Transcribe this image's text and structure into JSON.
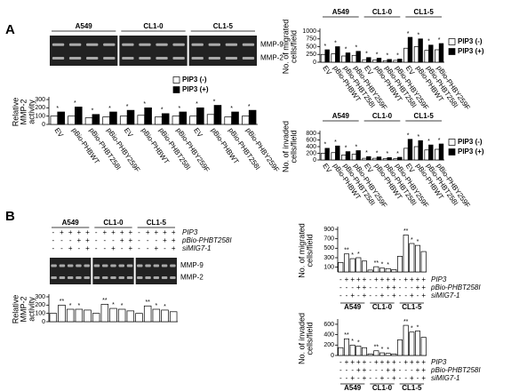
{
  "panels": [
    "A",
    "B"
  ],
  "chart_data": [
    {
      "type": "bar",
      "ylabel": [
        "Relative",
        "MMP-2",
        "activity"
      ],
      "groups": [
        "A549",
        "CL1-0",
        "CL1-5"
      ],
      "gel_labels": [
        "MMP-9",
        "MMP-2"
      ],
      "legend": true,
      "categories": [
        "EV",
        "pBio-PHBWT",
        "pBio-PHBT258I",
        "pBio-PHBY259F",
        "EV",
        "pBio-PHBWT",
        "pBio-PHBT258I",
        "pBio-PHBY259F",
        "EV",
        "pBio-PHBWT",
        "pBio-PHBT258I",
        "pBio-PHBY259F"
      ],
      "series": [
        {
          "name": "PIP3 (-)",
          "color": "#ffffff",
          "values": [
            100,
            100,
            80,
            90,
            100,
            110,
            90,
            100,
            100,
            120,
            90,
            100
          ]
        },
        {
          "name": "PIP3 (+)",
          "color": "#000000",
          "values": [
            150,
            210,
            120,
            150,
            170,
            200,
            130,
            150,
            200,
            230,
            150,
            170
          ]
        }
      ],
      "significance": [
        "*",
        "*",
        "*",
        "*",
        "*",
        "*",
        "*",
        "*",
        "*",
        "*",
        "*",
        "*"
      ],
      "ylim": [
        0,
        300
      ],
      "yticks": [
        0,
        100,
        200,
        300
      ]
    },
    {
      "type": "bar",
      "ylabel": [
        "No. of migrated",
        "cells/field"
      ],
      "groups": [
        "A549",
        "CL1-0",
        "CL1-5"
      ],
      "legend": true,
      "categories": [
        "EV",
        "pBio-PHBWT",
        "pBio-PHBT258I",
        "pBio-PHBY259F",
        "EV",
        "pBio-PHBWT",
        "pBio-PHBT258I",
        "pBio-PHBY259F",
        "EV",
        "pBio-PHBWT",
        "pBio-PHBT258I",
        "pBio-PHBY259F"
      ],
      "series": [
        {
          "name": "PIP3 (-)",
          "color": "#ffffff",
          "values": [
            250,
            270,
            200,
            220,
            80,
            70,
            50,
            60,
            450,
            500,
            380,
            400
          ]
        },
        {
          "name": "PIP3 (+)",
          "color": "#000000",
          "values": [
            400,
            500,
            300,
            350,
            150,
            130,
            90,
            100,
            800,
            750,
            550,
            600
          ]
        }
      ],
      "significance": [
        "*",
        "*",
        "*",
        "*",
        "*",
        "*",
        "*",
        "*",
        "*",
        "*",
        "*",
        "*"
      ],
      "ylim": [
        0,
        1000
      ],
      "yticks": [
        0,
        250,
        500,
        750,
        1000
      ]
    },
    {
      "type": "bar",
      "ylabel": [
        "No. of invaded",
        "cells/field"
      ],
      "groups": [
        "A549",
        "CL1-0",
        "CL1-5"
      ],
      "legend": true,
      "categories": [
        "EV",
        "pBio-PHBWT",
        "pBio-PHBT258I",
        "pBio-PHBY259F",
        "EV",
        "pBio-PHBWT",
        "pBio-PHBT258I",
        "pBio-PHBY259F",
        "EV",
        "pBio-PHBWT",
        "pBio-PHBT258I",
        "pBio-PHBY259F"
      ],
      "series": [
        {
          "name": "PIP3 (-)",
          "color": "#ffffff",
          "values": [
            200,
            220,
            150,
            170,
            50,
            50,
            40,
            40,
            350,
            400,
            300,
            320
          ]
        },
        {
          "name": "PIP3 (+)",
          "color": "#000000",
          "values": [
            350,
            420,
            250,
            280,
            100,
            90,
            70,
            80,
            620,
            580,
            450,
            480
          ]
        }
      ],
      "significance": [
        "*",
        "*",
        "*",
        "*",
        "*",
        "*",
        "*",
        "*",
        "*",
        "*",
        "*",
        "*"
      ],
      "ylim": [
        0,
        800
      ],
      "yticks": [
        0,
        200,
        400,
        600,
        800
      ]
    },
    {
      "type": "bar",
      "ylabel": [
        "Relative",
        "MMP-2",
        "activity"
      ],
      "groups": [
        "A549",
        "CL1-0",
        "CL1-5"
      ],
      "gel_labels": [
        "MMP-9",
        "MMP-2"
      ],
      "conditions": [
        {
          "name": "PIP3",
          "signs": [
            "-",
            "+",
            "+",
            "+",
            "+",
            "-",
            "+",
            "+",
            "+",
            "+",
            "-",
            "+",
            "+",
            "+",
            "+"
          ]
        },
        {
          "name": "pBio-PHBT258I",
          "signs": [
            "-",
            "-",
            "-",
            "+",
            "+",
            "-",
            "-",
            "-",
            "+",
            "+",
            "-",
            "-",
            "-",
            "+",
            "+"
          ]
        },
        {
          "name": "siMIG7-1",
          "signs": [
            "-",
            "-",
            "+",
            "-",
            "+",
            "-",
            "-",
            "+",
            "-",
            "+",
            "-",
            "-",
            "+",
            "-",
            "+"
          ]
        }
      ],
      "series": [
        {
          "name": "",
          "color": "#ffffff",
          "values": [
            100,
            200,
            150,
            150,
            140,
            100,
            210,
            160,
            150,
            130,
            100,
            190,
            150,
            140,
            120
          ]
        }
      ],
      "significance": [
        null,
        "**",
        "*",
        "*",
        null,
        null,
        "**",
        "*",
        "*",
        null,
        null,
        "**",
        "*",
        "*",
        null
      ],
      "ylim": [
        0,
        300
      ],
      "yticks": [
        0,
        100,
        200,
        300
      ]
    },
    {
      "type": "bar",
      "ylabel": [
        "No. of migrated",
        "cells/field"
      ],
      "groups": [
        "A549",
        "CL1-0",
        "CL1-5"
      ],
      "conditions": [
        {
          "name": "PIP3",
          "signs": [
            "-",
            "+",
            "+",
            "+",
            "+",
            "-",
            "+",
            "+",
            "+",
            "+",
            "-",
            "+",
            "+",
            "+",
            "+"
          ]
        },
        {
          "name": "pBio-PHBT258I",
          "signs": [
            "-",
            "-",
            "-",
            "+",
            "+",
            "-",
            "-",
            "-",
            "+",
            "+",
            "-",
            "-",
            "-",
            "+",
            "+"
          ]
        },
        {
          "name": "siMIG7-1",
          "signs": [
            "-",
            "-",
            "+",
            "-",
            "+",
            "-",
            "-",
            "+",
            "-",
            "+",
            "-",
            "-",
            "+",
            "-",
            "+"
          ]
        }
      ],
      "series": [
        {
          "name": "",
          "color": "#ffffff",
          "values": [
            200,
            380,
            280,
            300,
            230,
            40,
            110,
            80,
            70,
            50,
            330,
            780,
            600,
            560,
            430
          ]
        }
      ],
      "significance": [
        null,
        "**",
        "*",
        "*",
        null,
        null,
        "**",
        "*",
        "*",
        null,
        null,
        "**",
        "*",
        "*",
        null
      ],
      "ylim": [
        0,
        900
      ],
      "yticks": [
        100,
        300,
        500,
        700,
        900
      ]
    },
    {
      "type": "bar",
      "ylabel": [
        "No. of invaded",
        "cells/field"
      ],
      "groups": [
        "A549",
        "CL1-0",
        "CL1-5"
      ],
      "conditions": [
        {
          "name": "PIP3",
          "signs": [
            "-",
            "+",
            "+",
            "+",
            "+",
            "-",
            "+",
            "+",
            "+",
            "+",
            "-",
            "+",
            "+",
            "+",
            "+"
          ]
        },
        {
          "name": "pBio-PHBT258I",
          "signs": [
            "-",
            "-",
            "-",
            "+",
            "+",
            "-",
            "-",
            "-",
            "+",
            "+",
            "-",
            "-",
            "-",
            "+",
            "+"
          ]
        },
        {
          "name": "siMIG7-1",
          "signs": [
            "-",
            "-",
            "+",
            "-",
            "+",
            "-",
            "-",
            "+",
            "-",
            "+",
            "-",
            "-",
            "+",
            "-",
            "+"
          ]
        }
      ],
      "series": [
        {
          "name": "",
          "color": "#ffffff",
          "values": [
            150,
            320,
            200,
            180,
            150,
            30,
            90,
            50,
            40,
            30,
            300,
            580,
            450,
            470,
            350
          ]
        }
      ],
      "significance": [
        null,
        "**",
        "*",
        "*",
        null,
        null,
        "**",
        "*",
        "*",
        null,
        null,
        "**",
        "*",
        "*",
        null
      ],
      "ylim": [
        0,
        650
      ],
      "yticks": [
        0,
        200,
        400,
        600
      ]
    }
  ]
}
